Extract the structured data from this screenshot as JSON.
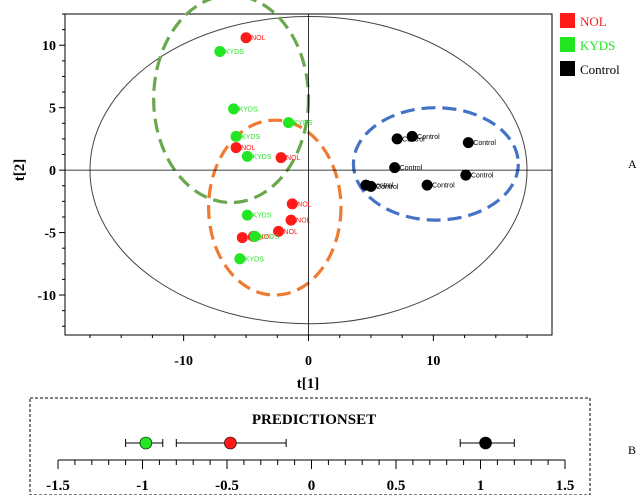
{
  "colors": {
    "nol": "#ff1a1a",
    "kyds": "#22e622",
    "control": "#000000",
    "ellipse_nol": "#ee7b30",
    "ellipse_kyds": "#6aa84f",
    "ellipse_control": "#4472c4"
  },
  "legend": [
    {
      "label": "NOL",
      "color": "#ff1a1a"
    },
    {
      "label": "KYDS",
      "color": "#22e622"
    },
    {
      "label": "Control",
      "color": "#000000"
    }
  ],
  "panel_tags": {
    "a": "A",
    "b": "B"
  },
  "chart_data": [
    {
      "type": "scatter",
      "title": "",
      "xlabel": "t[1]",
      "ylabel": "t[2]",
      "xlim": [
        -19.5,
        19.5
      ],
      "ylim": [
        -13.2,
        12.5
      ],
      "xticks": [
        -10,
        0,
        10
      ],
      "yticks": [
        -10,
        -5,
        0,
        5,
        10
      ],
      "grid": false,
      "legend_position": "top-right, outside plot",
      "series": [
        {
          "name": "NOL",
          "color": "#ff1a1a",
          "points": [
            {
              "x": -5.0,
              "y": 10.6,
              "label": "NOL"
            },
            {
              "x": -5.8,
              "y": 1.8,
              "label": "NOL"
            },
            {
              "x": -2.2,
              "y": 1.0,
              "label": "NOL"
            },
            {
              "x": -1.3,
              "y": -2.7,
              "label": "NOL"
            },
            {
              "x": -1.4,
              "y": -4.0,
              "label": "NOL"
            },
            {
              "x": -2.4,
              "y": -4.9,
              "label": "NOL"
            },
            {
              "x": -5.3,
              "y": -5.4,
              "label": "NOL"
            },
            {
              "x": -4.4,
              "y": -5.3,
              "label": "NOL"
            }
          ]
        },
        {
          "name": "KYDS",
          "color": "#22e622",
          "points": [
            {
              "x": -7.1,
              "y": 9.5,
              "label": "KYDS"
            },
            {
              "x": -6.0,
              "y": 4.9,
              "label": "KYDS"
            },
            {
              "x": -1.6,
              "y": 3.8,
              "label": "KYDS"
            },
            {
              "x": -5.8,
              "y": 2.7,
              "label": "KYDS"
            },
            {
              "x": -4.9,
              "y": 1.1,
              "label": "KYDS"
            },
            {
              "x": -4.9,
              "y": -3.6,
              "label": "KYDS"
            },
            {
              "x": -4.3,
              "y": -5.3,
              "label": "KYDS"
            },
            {
              "x": -5.5,
              "y": -7.1,
              "label": "KYDS"
            }
          ]
        },
        {
          "name": "Control",
          "color": "#000000",
          "points": [
            {
              "x": 7.1,
              "y": 2.5,
              "label": "Control"
            },
            {
              "x": 8.3,
              "y": 2.7,
              "label": "Control"
            },
            {
              "x": 12.8,
              "y": 2.2,
              "label": "Control"
            },
            {
              "x": 6.9,
              "y": 0.2,
              "label": "Control"
            },
            {
              "x": 12.6,
              "y": -0.4,
              "label": "Control"
            },
            {
              "x": 4.6,
              "y": -1.2,
              "label": "Control"
            },
            {
              "x": 5.0,
              "y": -1.3,
              "label": "Control"
            },
            {
              "x": 9.5,
              "y": -1.2,
              "label": "Control"
            }
          ]
        }
      ],
      "confidence_ellipse": {
        "cx": 0,
        "cy": 0,
        "rx": 17.5,
        "ry": 12.3
      },
      "group_ellipses": [
        {
          "group": "KYDS",
          "cx": -6.2,
          "cy": 5.7,
          "rx": 6.2,
          "ry": 8.3,
          "color": "#6aa84f"
        },
        {
          "group": "NOL",
          "cx": -2.7,
          "cy": -3.0,
          "rx": 5.3,
          "ry": 7.0,
          "color": "#ee7b30"
        },
        {
          "group": "Control",
          "cx": 10.2,
          "cy": 0.5,
          "rx": 6.6,
          "ry": 4.5,
          "color": "#4472c4"
        }
      ]
    },
    {
      "type": "scatter",
      "title": "PREDICTIONSET",
      "xlabel": "",
      "ylabel": "",
      "xlim": [
        -1.5,
        1.5
      ],
      "xticks": [
        -1.5,
        -1,
        -0.5,
        0,
        0.5,
        1,
        1.5
      ],
      "xtick_labels": [
        "-1.5",
        "-1",
        "-0.5",
        "0",
        "0.5",
        "1",
        "1.5"
      ],
      "series": [
        {
          "name": "KYDS",
          "color": "#22e622",
          "x": -0.98,
          "err_low": -1.1,
          "err_high": -0.88
        },
        {
          "name": "NOL",
          "color": "#ff1a1a",
          "x": -0.48,
          "err_low": -0.8,
          "err_high": -0.15
        },
        {
          "name": "Control",
          "color": "#000000",
          "x": 1.03,
          "err_low": 0.88,
          "err_high": 1.2
        }
      ]
    }
  ]
}
